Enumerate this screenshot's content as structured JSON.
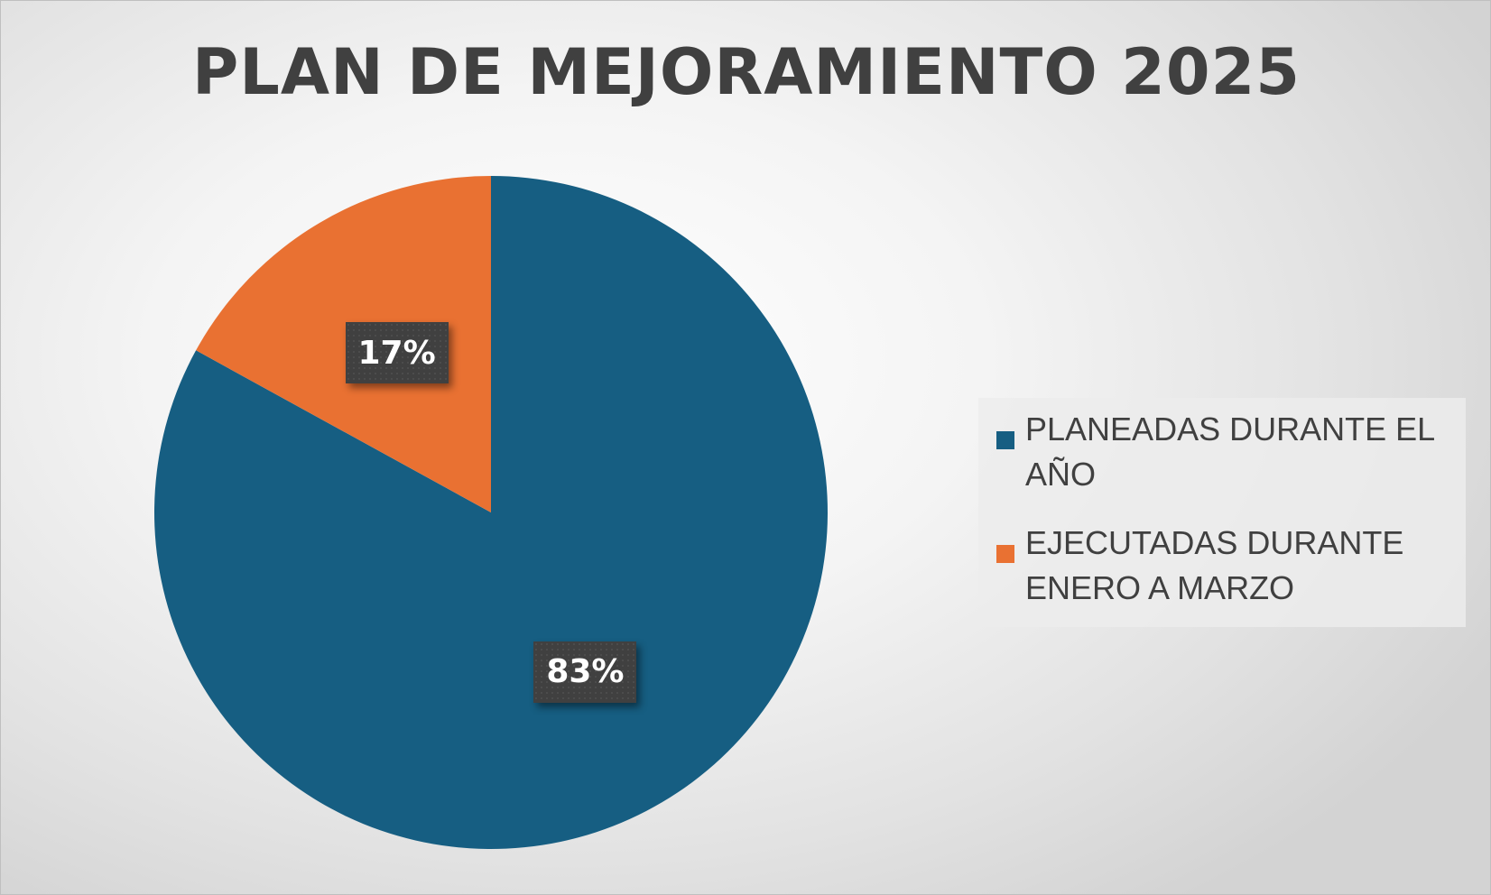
{
  "chart_data": {
    "type": "pie",
    "title": "PLAN DE MEJORAMIENTO 2025",
    "categories": [
      "PLANEADAS DURANTE EL AÑO",
      "EJECUTADAS DURANTE ENERO A MARZO"
    ],
    "values": [
      83,
      17
    ],
    "data_labels": [
      "83%",
      "17%"
    ],
    "colors": [
      "#165E82",
      "#E97132"
    ],
    "start_angle_deg": 0,
    "direction": "clockwise",
    "legend_position": "right"
  }
}
